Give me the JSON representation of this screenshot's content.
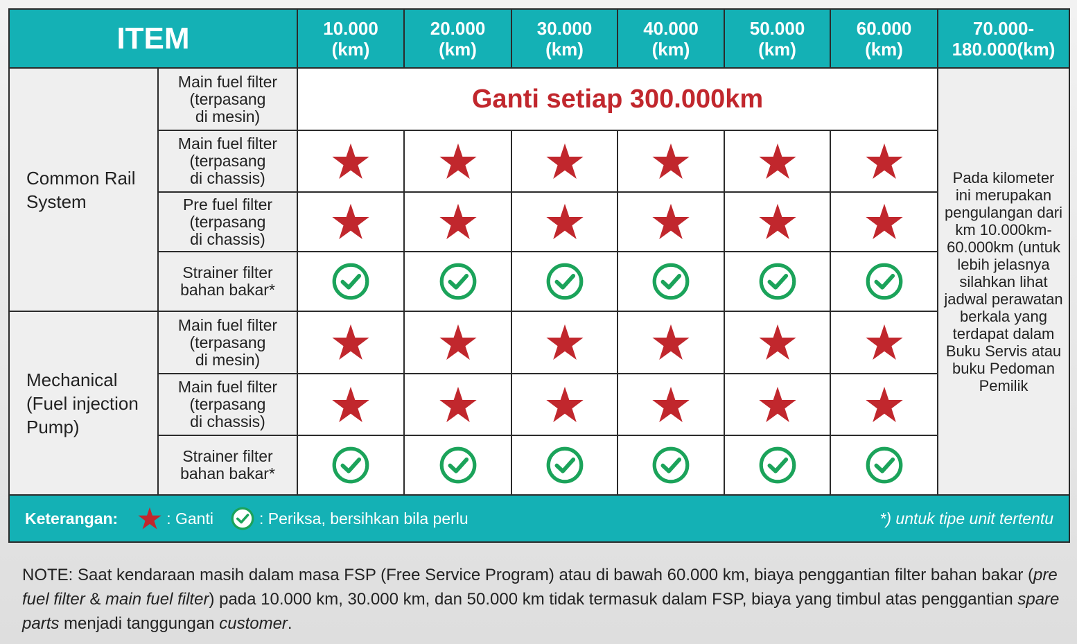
{
  "header": {
    "item": "ITEM",
    "columns": [
      [
        "10.000",
        "(km)"
      ],
      [
        "20.000",
        "(km)"
      ],
      [
        "30.000",
        "(km)"
      ],
      [
        "40.000",
        "(km)"
      ],
      [
        "50.000",
        "(km)"
      ],
      [
        "60.000",
        "(km)"
      ],
      [
        "70.000-",
        "180.000(km)"
      ]
    ]
  },
  "groups": [
    {
      "label": "Common Rail System",
      "rows": [
        "Main fuel filter\n(terpasang\ndi mesin)",
        "Main fuel filter\n(terpasang\ndi chassis)",
        "Pre fuel filter\n(terpasang\ndi chassis)",
        "Strainer filter\nbahan bakar*"
      ]
    },
    {
      "label": "Mechanical (Fuel injection Pump)",
      "rows": [
        "Main fuel filter\n(terpasang\ndi mesin)",
        "Main fuel filter\n(terpasang\ndi chassis)",
        "Strainer filter\nbahan bakar*"
      ]
    }
  ],
  "replace_interval": "Ganti setiap 300.000km",
  "repeat_note": "Pada kilometer ini merupakan pengulangan dari km 10.000km-60.000km (untuk lebih jelasnya silahkan lihat jadwal perawatan berkala yang terdapat dalam Buku Servis atau buku Pedoman Pemilik",
  "legend": {
    "title": "Keterangan:",
    "replace": ": Ganti",
    "check": ": Periksa, bersihkan bila perlu",
    "footnote": "*) untuk tipe unit tertentu"
  },
  "note": [
    "NOTE: Saat kendaraan masih dalam masa FSP (Free Service Program) atau di bawah 60.000 km, biaya penggantian filter bahan bakar (",
    "pre fuel filter",
    " & ",
    "main fuel filter",
    ") pada 10.000 km, 30.000 km, dan 50.000 km tidak termasuk dalam FSP, biaya yang timbul atas penggantian ",
    "spare parts",
    " menjadi tanggungan ",
    "customer",
    "."
  ]
}
